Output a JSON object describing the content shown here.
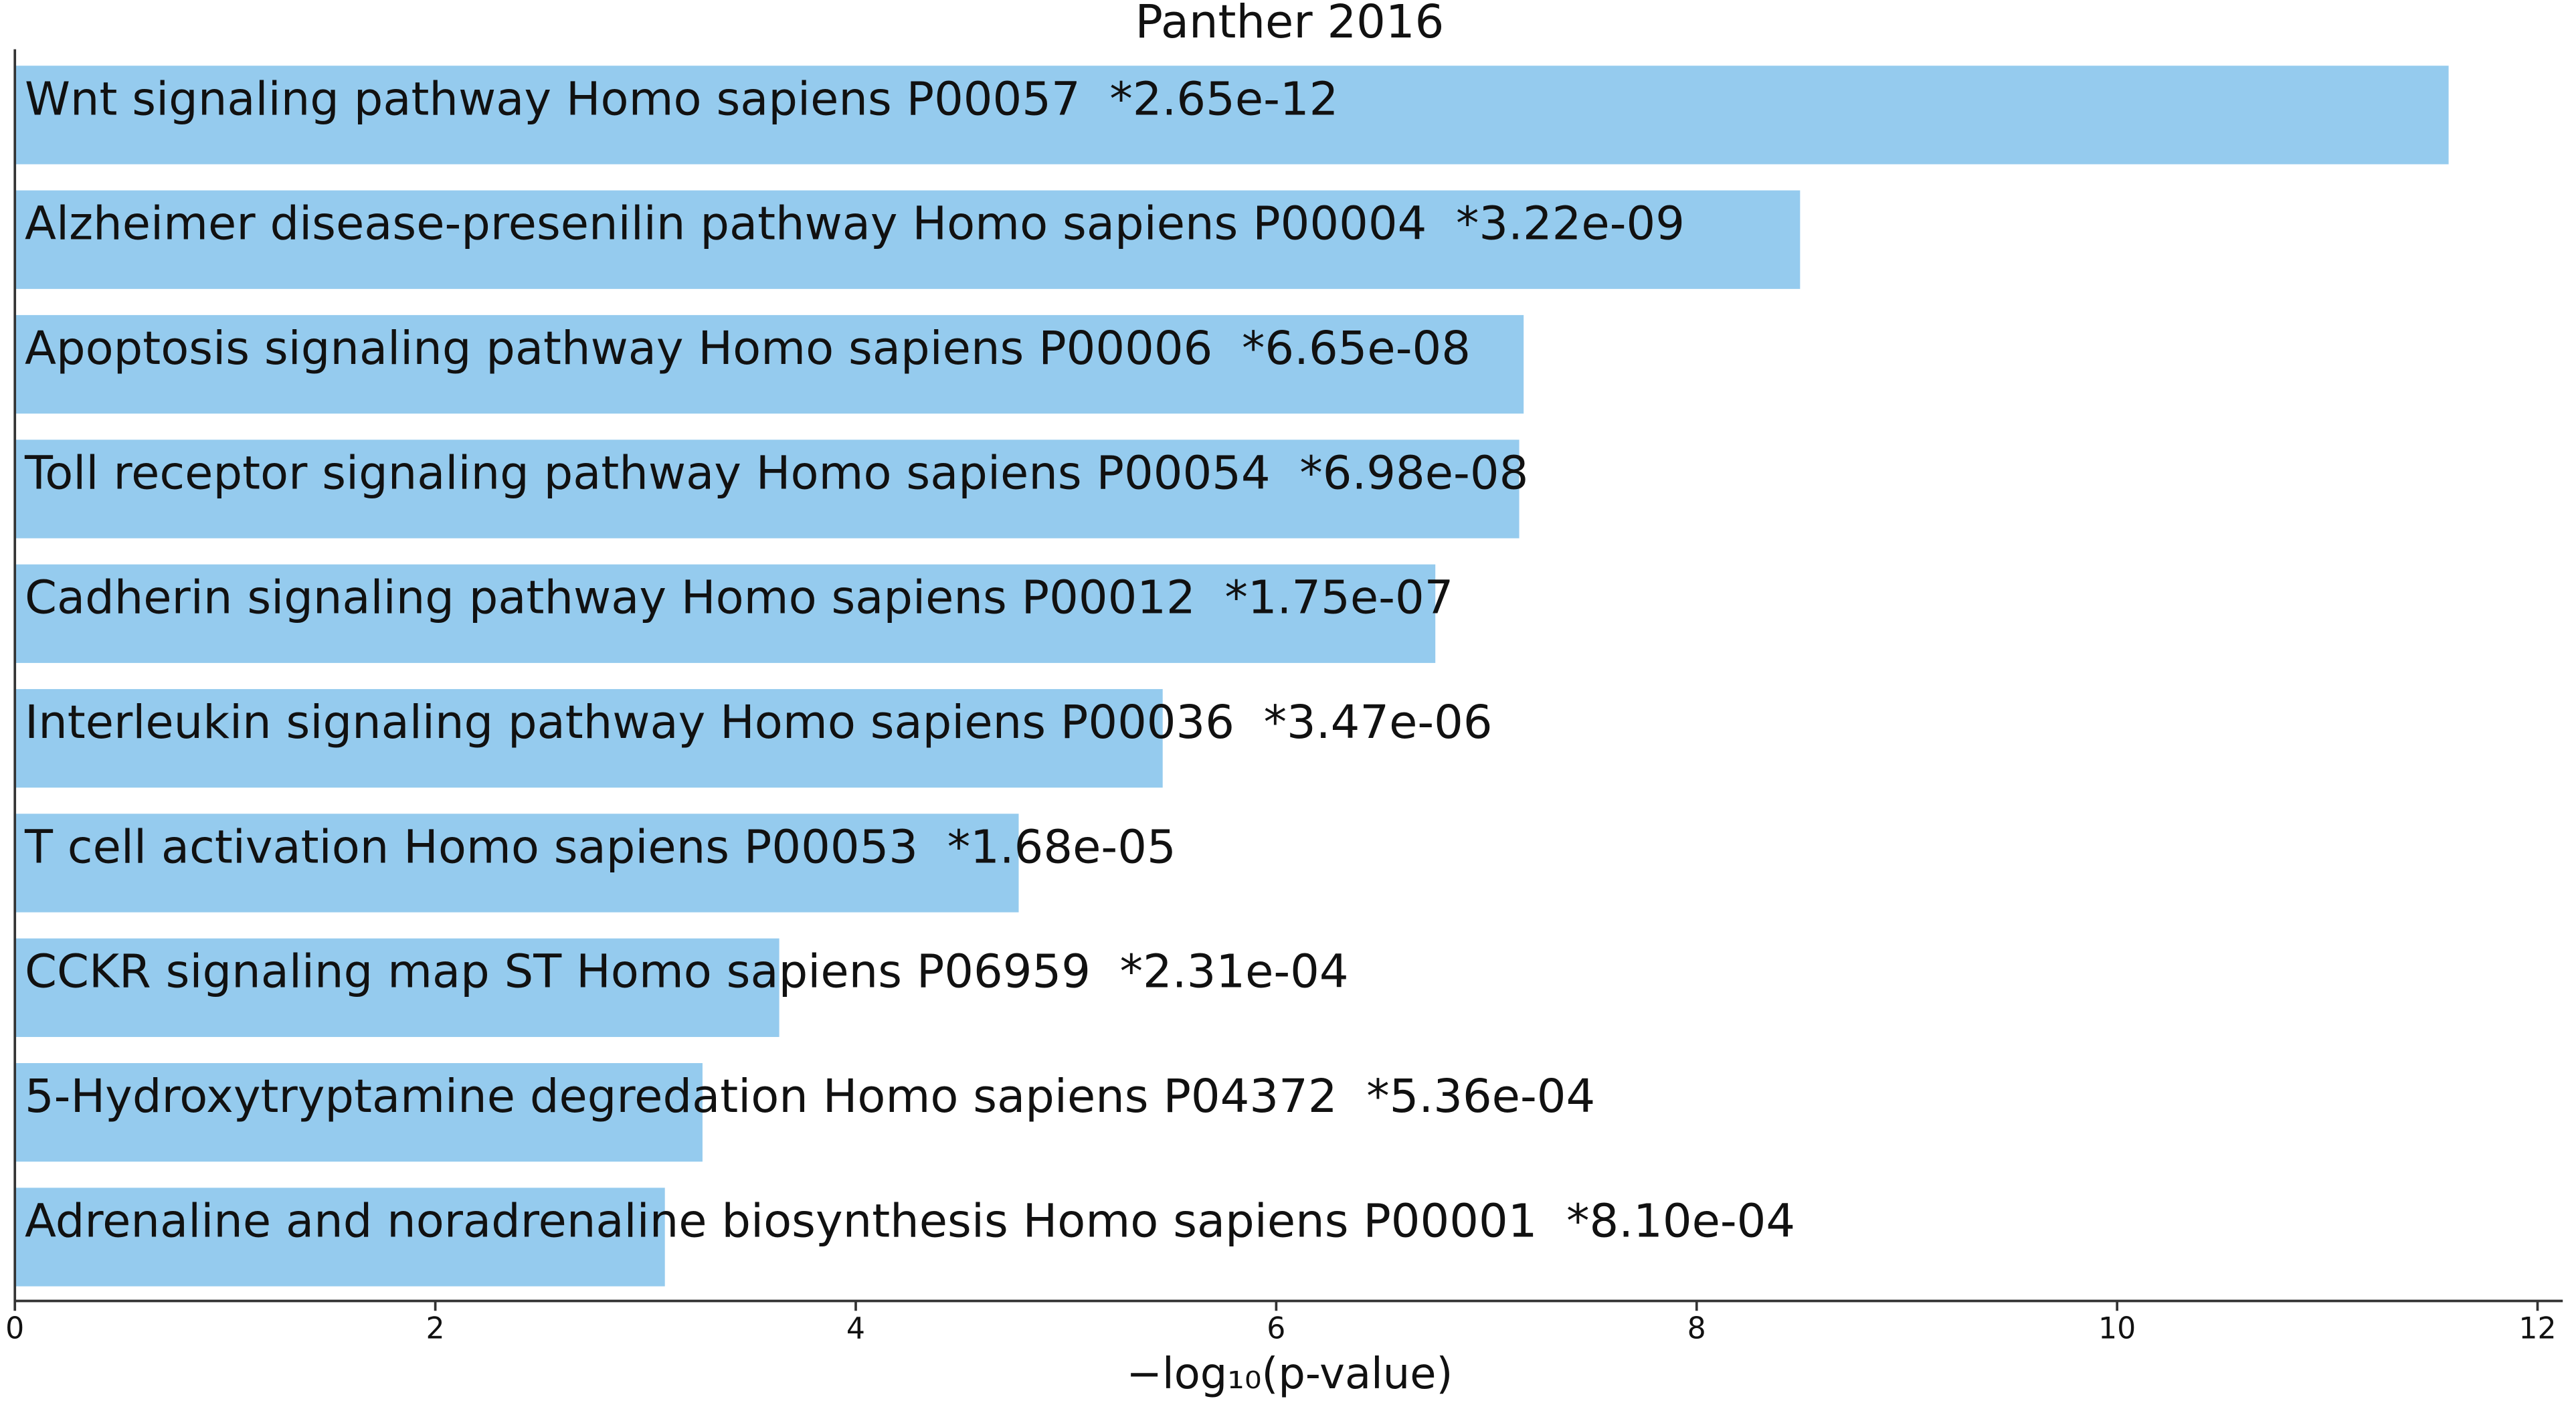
{
  "chart_data": {
    "type": "barh",
    "title": "Panther 2016",
    "categories": [
      "Wnt signaling pathway Homo sapiens P00057  *2.65e-12",
      "Alzheimer disease-presenilin pathway Homo sapiens P00004  *3.22e-09",
      "Apoptosis signaling pathway Homo sapiens P00006  *6.65e-08",
      "Toll receptor signaling pathway Homo sapiens P00054  *6.98e-08",
      "Cadherin signaling pathway Homo sapiens P00012  *1.75e-07",
      "Interleukin signaling pathway Homo sapiens P00036  *3.47e-06",
      "T cell activation Homo sapiens P00053  *1.68e-05",
      "CCKR signaling map ST Homo sapiens P06959  *2.31e-04",
      "5-Hydroxytryptamine degredation Homo sapiens P04372  *5.36e-04",
      "Adrenaline and noradrenaline biosynthesis Homo sapiens P00001  *8.10e-04"
    ],
    "values": [
      11.577,
      8.492,
      7.177,
      7.156,
      6.757,
      5.46,
      4.775,
      3.636,
      3.271,
      3.092
    ],
    "color": "#95cbee",
    "xlabel": "−log₁₀(p-value)",
    "xlim": [
      0,
      12.12
    ],
    "xticks": [
      0,
      2,
      4,
      6,
      8,
      10,
      12
    ]
  }
}
